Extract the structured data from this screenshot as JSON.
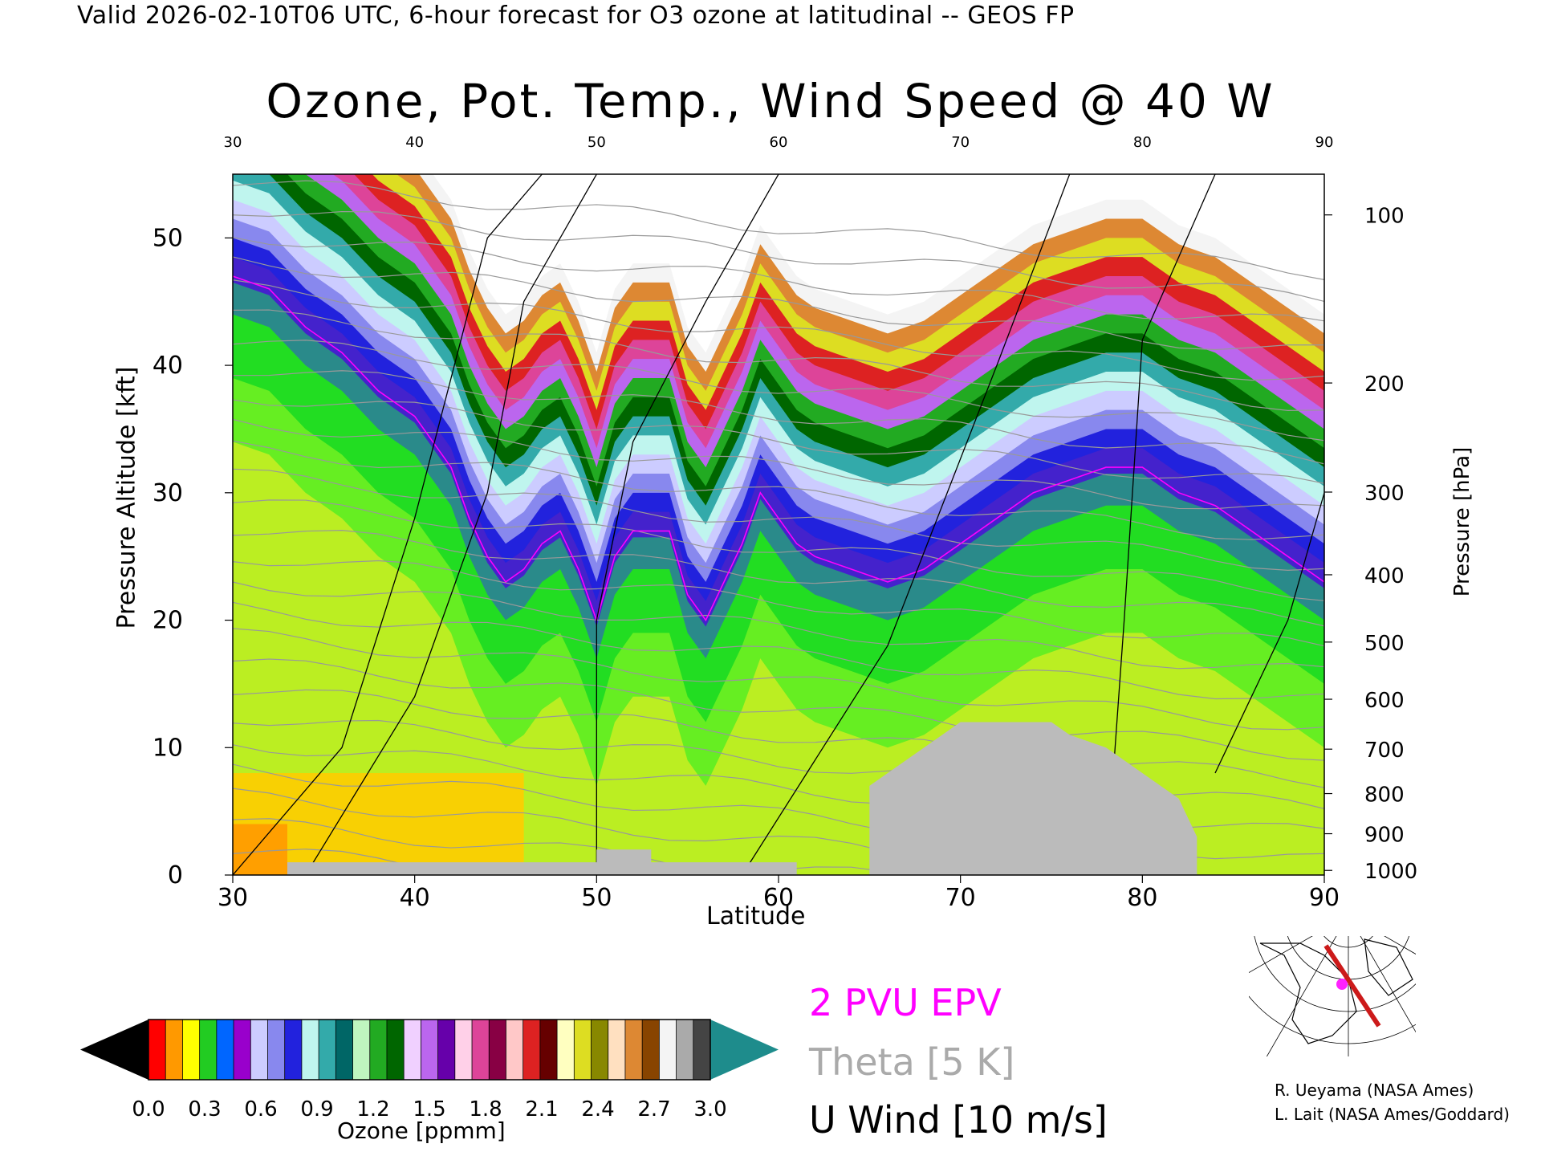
{
  "header": {
    "valid_line": "Valid 2026-02-10T06 UTC, 6-hour forecast for O3 ozone at latitudinal -- GEOS FP",
    "title": "Ozone, Pot. Temp., Wind Speed @ 40 W"
  },
  "chart_data": {
    "type": "heatmap",
    "title": "Ozone, Pot. Temp., Wind Speed @ 40 W",
    "xlabel": "Latitude",
    "ylabel": "Pressure Altitude [kft]",
    "y2label": "Pressure [hPa]",
    "xlim": [
      30,
      90
    ],
    "ylim": [
      0,
      55
    ],
    "x_ticks": [
      30,
      40,
      50,
      60,
      70,
      80,
      90
    ],
    "y_ticks": [
      0,
      10,
      20,
      30,
      40,
      50
    ],
    "pressure_ticks": [
      1000,
      900,
      800,
      700,
      600,
      500,
      400,
      300,
      200,
      100
    ],
    "tropopause_kft": [
      [
        30,
        48
      ],
      [
        32,
        47
      ],
      [
        34,
        44
      ],
      [
        36,
        42
      ],
      [
        38,
        39
      ],
      [
        40,
        37
      ],
      [
        42,
        33
      ],
      [
        43,
        29
      ],
      [
        44,
        26
      ],
      [
        45,
        24
      ],
      [
        46,
        25
      ],
      [
        47,
        27
      ],
      [
        48,
        28
      ],
      [
        49,
        25
      ],
      [
        50,
        21
      ],
      [
        51,
        26
      ],
      [
        52,
        28
      ],
      [
        54,
        28
      ],
      [
        55,
        23
      ],
      [
        56,
        21
      ],
      [
        58,
        27
      ],
      [
        59,
        31
      ],
      [
        60,
        29
      ],
      [
        61,
        27
      ],
      [
        62,
        26
      ],
      [
        64,
        25
      ],
      [
        66,
        24
      ],
      [
        68,
        25
      ],
      [
        70,
        27
      ],
      [
        72,
        29
      ],
      [
        74,
        31
      ],
      [
        76,
        32
      ],
      [
        78,
        33
      ],
      [
        80,
        33
      ],
      [
        82,
        31
      ],
      [
        84,
        30
      ],
      [
        86,
        28
      ],
      [
        88,
        26
      ],
      [
        90,
        24
      ]
    ],
    "surface_kft": [
      [
        30,
        0
      ],
      [
        33,
        0
      ],
      [
        33,
        1
      ],
      [
        50,
        1
      ],
      [
        50,
        2
      ],
      [
        53,
        2
      ],
      [
        53,
        1
      ],
      [
        61,
        1
      ],
      [
        61,
        0
      ],
      [
        65,
        0
      ],
      [
        65,
        7
      ],
      [
        66,
        8
      ],
      [
        67,
        9
      ],
      [
        68,
        10
      ],
      [
        69,
        11
      ],
      [
        70,
        12
      ],
      [
        75,
        12
      ],
      [
        76,
        11
      ],
      [
        78,
        10
      ],
      [
        79,
        9
      ],
      [
        80,
        8
      ],
      [
        82,
        6
      ],
      [
        83,
        3
      ],
      [
        83,
        0
      ]
    ],
    "colorbar": {
      "label": "Ozone [ppmm]",
      "min": 0.0,
      "max": 3.0,
      "tick_labels": [
        "0.0",
        "0.3",
        "0.6",
        "0.9",
        "1.2",
        "1.5",
        "1.8",
        "2.1",
        "2.4",
        "2.7",
        "3.0"
      ],
      "colors": [
        "#ff0000",
        "#ff9900",
        "#ffff00",
        "#22cc22",
        "#0066ff",
        "#9900cc",
        "#ccccff",
        "#8888ee",
        "#2222dd",
        "#bff5ee",
        "#33aaaa",
        "#006666",
        "#bff5bf",
        "#22aa22",
        "#006600",
        "#f0d0ff",
        "#bb66ee",
        "#6600aa",
        "#ffd0e8",
        "#dd4499",
        "#880044",
        "#ffc8c8",
        "#dd2222",
        "#660000",
        "#ffffc0",
        "#dddd22",
        "#888800",
        "#ffe0c0",
        "#dd8833",
        "#884400",
        "#f4f4f4",
        "#aaaaaa",
        "#444444"
      ]
    },
    "legend": {
      "epv": "2 PVU EPV",
      "theta": "Theta [5 K]",
      "uwind": "U Wind [10 m/s]"
    }
  },
  "credits": {
    "line1": "R. Ueyama (NASA Ames)",
    "line2": "L. Lait (NASA Ames/Goddard)"
  }
}
